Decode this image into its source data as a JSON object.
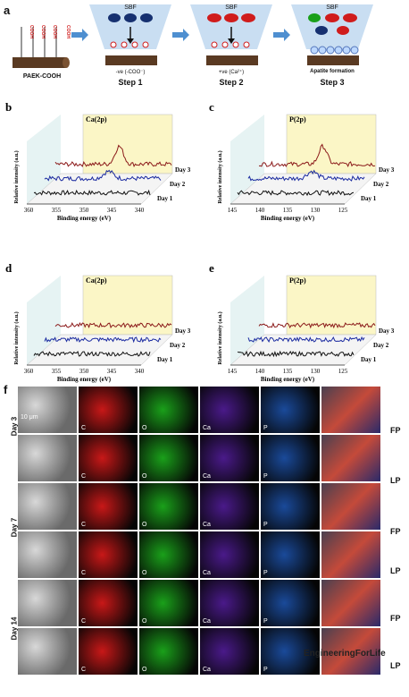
{
  "panel_a": {
    "letter": "a",
    "cooh_label": "COOH",
    "substrate_caption": "PAEK-COOH",
    "sbf_label": "SBF",
    "steps": [
      {
        "sub": "-ve (-COO⁻)",
        "title": "Step 1"
      },
      {
        "sub": "+ve (Ca²⁺)",
        "title": "Step 2"
      },
      {
        "sub": "Apatite formation",
        "title": "Step 3"
      }
    ],
    "ion_ca": "Ca²⁺",
    "ion_po": "PO₄³⁻"
  },
  "xps": {
    "y_label": "Relative intensity (a.u.)",
    "x_label": "Binding energy (eV)",
    "days": [
      "Day 3",
      "Day 2",
      "Day 1"
    ],
    "colors": {
      "day3": "#8b1a1a",
      "day2": "#1a2aa0",
      "day1": "#111111",
      "highlight": "#fbf6c6",
      "wall": "#e6f3f3"
    },
    "panels": [
      {
        "letter": "b",
        "element": "Ca(2p)",
        "ticks": [
          "360",
          "355",
          "350",
          "345",
          "340"
        ]
      },
      {
        "letter": "c",
        "element": "P(2p)",
        "ticks": [
          "145",
          "140",
          "135",
          "130",
          "125"
        ]
      },
      {
        "letter": "d",
        "element": "Ca(2p)",
        "ticks": [
          "360",
          "355",
          "350",
          "345",
          "340"
        ]
      },
      {
        "letter": "e",
        "element": "P(2p)",
        "ticks": [
          "145",
          "140",
          "135",
          "130",
          "125"
        ]
      }
    ]
  },
  "panel_f": {
    "letter": "f",
    "scale_bar": "10 μm",
    "columns": [
      "",
      "C",
      "O",
      "Ca",
      "P",
      ""
    ],
    "groups": [
      "Day 3",
      "Day 7",
      "Day 14"
    ],
    "rows": [
      "FP",
      "LP",
      "FP",
      "LP",
      "FP",
      "LP"
    ],
    "colors": {
      "C": "#c81818",
      "O": "#1aa01a",
      "Ca": "#4a1a8a",
      "P": "#1a4a9a"
    }
  },
  "watermark": "EngineeringForLife"
}
